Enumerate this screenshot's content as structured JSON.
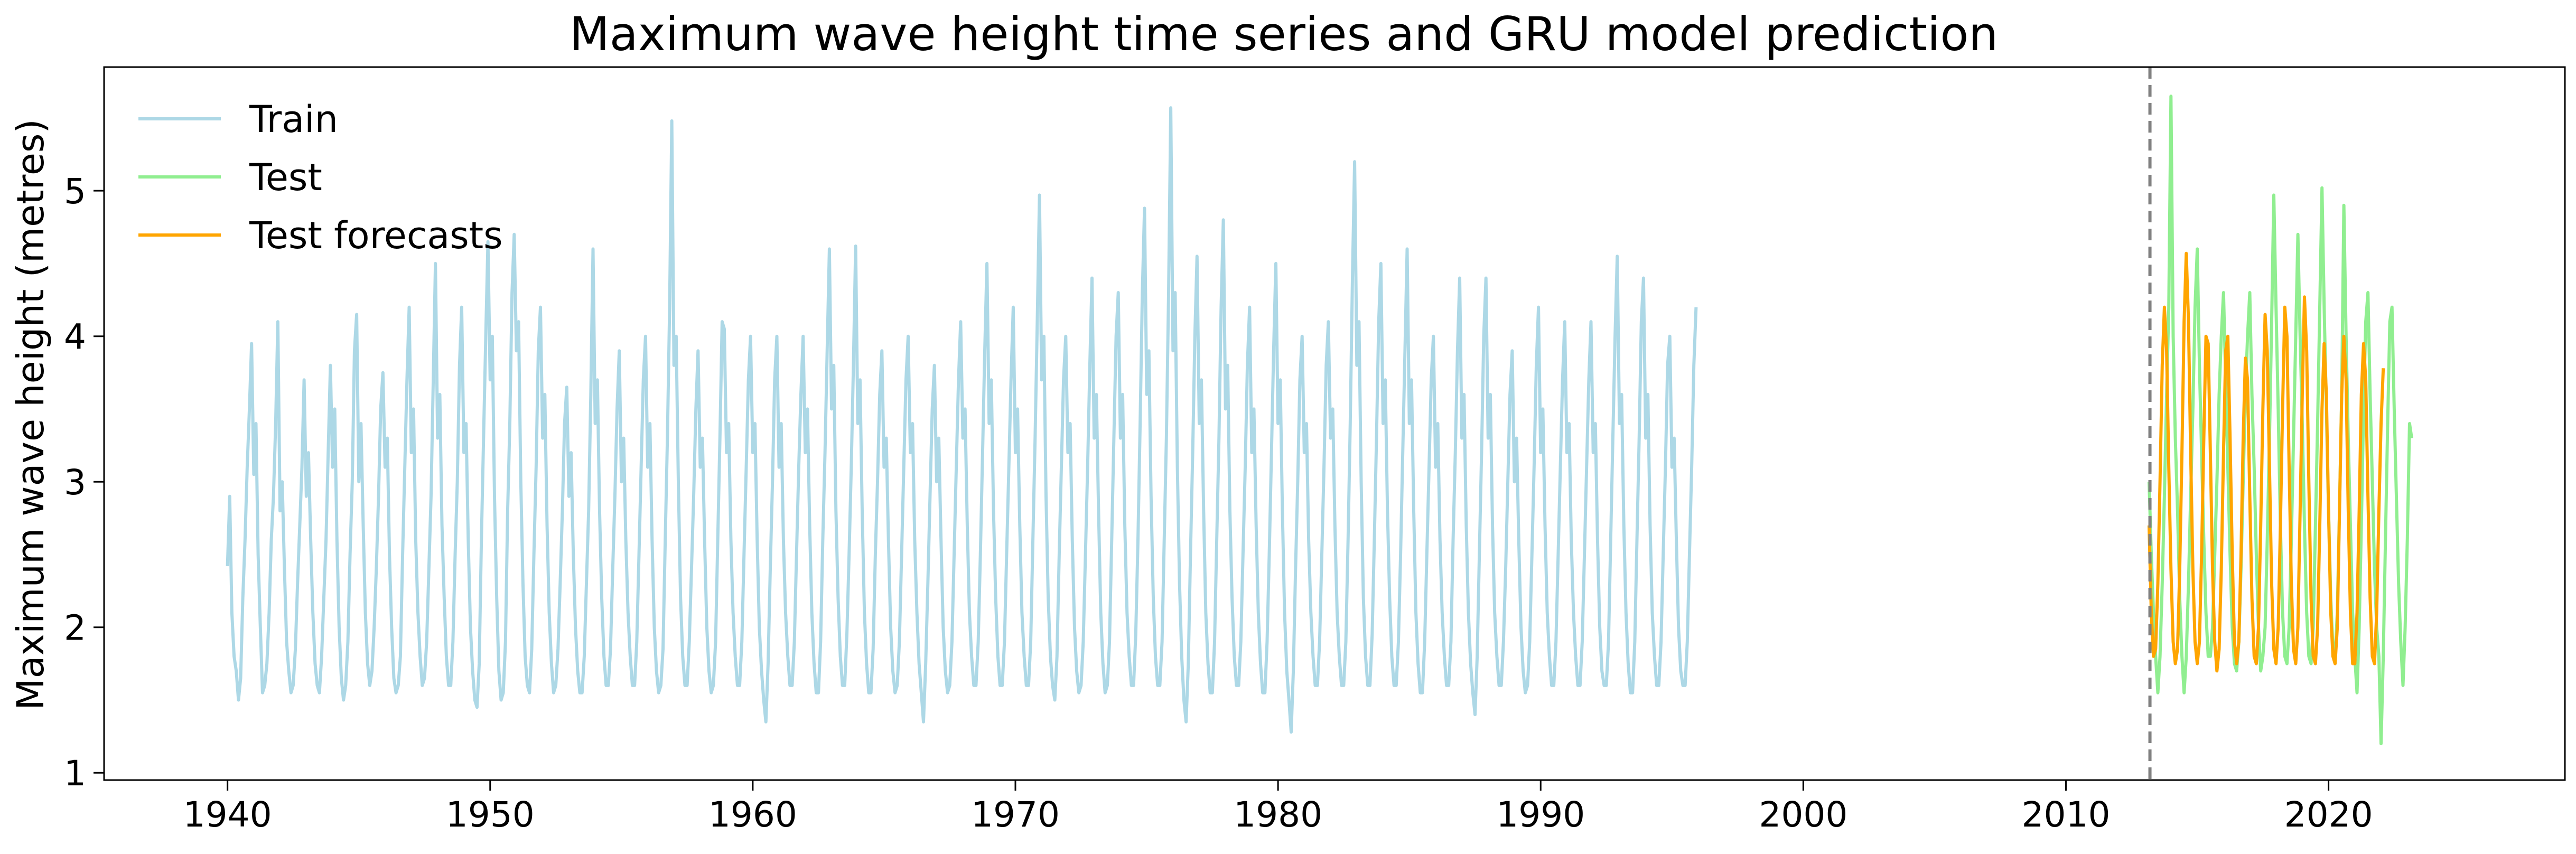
{
  "chart_data": {
    "type": "line",
    "title": "Maximum wave height time series and GRU model prediction",
    "xlabel": "",
    "ylabel": "Maximum wave height (metres)",
    "xlim": [
      1935.3,
      2029.0
    ],
    "ylim": [
      0.95,
      5.85
    ],
    "xticks": [
      1940,
      1950,
      1960,
      1970,
      1980,
      1990,
      2000,
      2010,
      2020
    ],
    "yticks": [
      1,
      2,
      3,
      4,
      5
    ],
    "grid": false,
    "legend_position": "top-left",
    "split_marker": {
      "x": 2013.2,
      "style": "dashed",
      "color": "#808080"
    },
    "series": [
      {
        "name": "Train",
        "color": "#add8e6",
        "x_start": 1940.0,
        "x_step": 0.0833333,
        "values": [
          2.42,
          2.9,
          2.1,
          1.8,
          1.7,
          1.5,
          1.65,
          2.2,
          2.6,
          3.1,
          3.5,
          3.95,
          3.05,
          3.4,
          2.5,
          2.0,
          1.55,
          1.6,
          1.75,
          2.1,
          2.6,
          2.9,
          3.4,
          4.1,
          2.8,
          3.0,
          2.4,
          1.9,
          1.7,
          1.55,
          1.6,
          1.85,
          2.3,
          2.7,
          3.1,
          3.7,
          2.9,
          3.2,
          2.6,
          2.1,
          1.75,
          1.6,
          1.55,
          1.8,
          2.2,
          2.6,
          3.2,
          3.8,
          3.1,
          3.5,
          2.6,
          2.0,
          1.65,
          1.5,
          1.6,
          1.9,
          2.5,
          3.0,
          3.9,
          4.15,
          3.0,
          3.4,
          2.7,
          2.1,
          1.75,
          1.6,
          1.7,
          2.0,
          2.4,
          2.9,
          3.5,
          3.75,
          3.1,
          3.3,
          2.5,
          2.0,
          1.65,
          1.55,
          1.6,
          1.8,
          2.5,
          3.1,
          3.7,
          4.2,
          3.2,
          3.5,
          2.6,
          2.1,
          1.8,
          1.6,
          1.65,
          1.9,
          2.4,
          2.9,
          3.7,
          4.5,
          3.3,
          3.6,
          2.7,
          2.2,
          1.8,
          1.6,
          1.6,
          1.9,
          2.5,
          3.0,
          3.8,
          4.2,
          3.2,
          3.4,
          2.6,
          2.0,
          1.7,
          1.5,
          1.45,
          1.75,
          2.6,
          3.3,
          4.0,
          4.65,
          3.7,
          4.0,
          2.9,
          2.2,
          1.7,
          1.5,
          1.55,
          1.9,
          2.8,
          3.4,
          4.3,
          4.7,
          3.9,
          4.1,
          3.0,
          2.3,
          1.8,
          1.6,
          1.55,
          1.85,
          2.5,
          3.1,
          3.9,
          4.2,
          3.3,
          3.6,
          2.7,
          2.1,
          1.75,
          1.55,
          1.6,
          1.85,
          2.3,
          2.8,
          3.4,
          3.65,
          2.9,
          3.2,
          2.5,
          2.0,
          1.7,
          1.55,
          1.55,
          1.8,
          2.3,
          2.8,
          3.6,
          4.6,
          3.4,
          3.7,
          2.8,
          2.2,
          1.8,
          1.6,
          1.6,
          1.85,
          2.4,
          2.9,
          3.5,
          3.9,
          3.0,
          3.3,
          2.6,
          2.1,
          1.8,
          1.6,
          1.6,
          1.9,
          2.5,
          3.1,
          3.7,
          4.0,
          3.1,
          3.4,
          2.6,
          2.0,
          1.7,
          1.55,
          1.6,
          1.85,
          2.6,
          3.3,
          4.2,
          5.48,
          3.8,
          4.0,
          3.0,
          2.2,
          1.8,
          1.6,
          1.6,
          1.9,
          2.4,
          2.9,
          3.5,
          3.9,
          3.1,
          3.3,
          2.6,
          2.0,
          1.7,
          1.55,
          1.6,
          1.9,
          2.6,
          3.3,
          4.1,
          4.05,
          3.2,
          3.4,
          2.6,
          2.1,
          1.8,
          1.6,
          1.6,
          1.9,
          2.5,
          3.1,
          3.7,
          4.0,
          3.2,
          3.4,
          2.6,
          2.0,
          1.7,
          1.5,
          1.35,
          1.75,
          2.4,
          3.0,
          3.7,
          4.0,
          3.1,
          3.4,
          2.6,
          2.1,
          1.8,
          1.6,
          1.6,
          1.9,
          2.5,
          3.1,
          3.6,
          4.0,
          3.2,
          3.5,
          2.7,
          2.1,
          1.75,
          1.55,
          1.55,
          1.9,
          2.6,
          3.2,
          3.9,
          4.6,
          3.5,
          3.8,
          2.8,
          2.2,
          1.8,
          1.6,
          1.6,
          1.95,
          2.5,
          3.1,
          3.8,
          4.62,
          3.4,
          3.7,
          2.8,
          2.1,
          1.75,
          1.55,
          1.55,
          1.85,
          2.5,
          3.0,
          3.6,
          3.9,
          3.1,
          3.3,
          2.6,
          2.0,
          1.7,
          1.55,
          1.6,
          1.9,
          2.5,
          3.1,
          3.7,
          4.0,
          3.2,
          3.4,
          2.6,
          2.1,
          1.75,
          1.55,
          1.35,
          1.75,
          2.3,
          2.9,
          3.5,
          3.8,
          3.0,
          3.3,
          2.6,
          2.0,
          1.7,
          1.55,
          1.6,
          1.9,
          2.5,
          3.1,
          3.7,
          4.1,
          3.3,
          3.5,
          2.7,
          2.1,
          1.8,
          1.6,
          1.6,
          1.9,
          2.5,
          3.2,
          3.9,
          4.5,
          3.4,
          3.7,
          2.8,
          2.2,
          1.8,
          1.6,
          1.6,
          1.9,
          2.5,
          3.1,
          3.7,
          4.2,
          3.2,
          3.5,
          2.7,
          2.1,
          1.8,
          1.6,
          1.6,
          1.9,
          2.6,
          3.3,
          4.1,
          4.97,
          3.7,
          4.0,
          2.9,
          2.2,
          1.8,
          1.6,
          1.5,
          1.8,
          2.5,
          3.1,
          3.7,
          4.0,
          3.2,
          3.4,
          2.6,
          2.0,
          1.7,
          1.55,
          1.6,
          1.9,
          2.5,
          3.1,
          3.8,
          4.4,
          3.3,
          3.6,
          2.8,
          2.1,
          1.75,
          1.55,
          1.6,
          1.9,
          2.6,
          3.3,
          4.0,
          4.3,
          3.3,
          3.6,
          2.7,
          2.1,
          1.8,
          1.6,
          1.6,
          1.95,
          2.6,
          3.4,
          4.3,
          4.88,
          3.6,
          3.9,
          2.9,
          2.2,
          1.8,
          1.6,
          1.6,
          1.9,
          2.6,
          3.3,
          4.3,
          5.57,
          3.9,
          4.3,
          3.1,
          2.3,
          1.8,
          1.5,
          1.35,
          1.75,
          2.5,
          3.2,
          4.0,
          4.55,
          3.4,
          3.7,
          2.8,
          2.1,
          1.75,
          1.55,
          1.55,
          1.9,
          2.6,
          3.3,
          4.2,
          4.8,
          3.5,
          3.8,
          2.8,
          2.2,
          1.8,
          1.6,
          1.6,
          1.9,
          2.5,
          3.1,
          3.8,
          4.2,
          3.2,
          3.5,
          2.7,
          2.1,
          1.75,
          1.55,
          1.55,
          1.9,
          2.5,
          3.2,
          3.9,
          4.5,
          3.4,
          3.7,
          2.8,
          2.1,
          1.7,
          1.5,
          1.28,
          1.7,
          2.4,
          3.0,
          3.7,
          4.0,
          3.2,
          3.4,
          2.6,
          2.1,
          1.8,
          1.6,
          1.6,
          1.9,
          2.5,
          3.1,
          3.8,
          4.1,
          3.3,
          3.5,
          2.7,
          2.1,
          1.8,
          1.6,
          1.6,
          1.9,
          2.6,
          3.4,
          4.4,
          5.2,
          3.8,
          4.1,
          3.0,
          2.2,
          1.8,
          1.6,
          1.6,
          1.95,
          2.6,
          3.3,
          4.1,
          4.5,
          3.4,
          3.7,
          2.8,
          2.2,
          1.8,
          1.6,
          1.6,
          1.9,
          2.5,
          3.2,
          3.9,
          4.6,
          3.4,
          3.7,
          2.8,
          2.1,
          1.75,
          1.55,
          1.55,
          1.9,
          2.5,
          3.1,
          3.7,
          4.0,
          3.1,
          3.4,
          2.6,
          2.1,
          1.8,
          1.6,
          1.6,
          1.9,
          2.6,
          3.2,
          3.9,
          4.4,
          3.3,
          3.6,
          2.7,
          2.1,
          1.75,
          1.55,
          1.4,
          1.8,
          2.5,
          3.2,
          4.0,
          4.4,
          3.3,
          3.6,
          2.7,
          2.1,
          1.8,
          1.6,
          1.6,
          1.9,
          2.4,
          3.0,
          3.6,
          3.9,
          3.0,
          3.3,
          2.6,
          2.0,
          1.7,
          1.55,
          1.6,
          1.9,
          2.5,
          3.1,
          3.8,
          4.2,
          3.2,
          3.5,
          2.7,
          2.1,
          1.8,
          1.6,
          1.6,
          1.9,
          2.5,
          3.1,
          3.7,
          4.1,
          3.2,
          3.4,
          2.6,
          2.1,
          1.8,
          1.6,
          1.6,
          1.9,
          2.5,
          3.1,
          3.7,
          4.1,
          3.2,
          3.4,
          2.6,
          2.0,
          1.7,
          1.6,
          1.6,
          1.9,
          2.6,
          3.3,
          4.0,
          4.55,
          3.4,
          3.6,
          2.7,
          2.1,
          1.75,
          1.55,
          1.55,
          1.9,
          2.6,
          3.3,
          4.1,
          4.4,
          3.3,
          3.6,
          2.7,
          2.1,
          1.8,
          1.6,
          1.6,
          1.9,
          2.5,
          3.1,
          3.8,
          4.0,
          3.1,
          3.3,
          2.6,
          2.0,
          1.7,
          1.6,
          1.6,
          1.9,
          2.5,
          3.1,
          3.8,
          4.2
        ]
      },
      {
        "name": "Test",
        "color": "#90ee90",
        "x_start": 2013.167,
        "x_step": 0.0833333,
        "values": [
          3.0,
          2.5,
          2.1,
          1.8,
          1.55,
          1.8,
          2.3,
          2.9,
          3.6,
          4.2,
          5.65,
          4.0,
          3.3,
          2.8,
          2.2,
          1.8,
          1.55,
          1.8,
          2.3,
          2.9,
          3.5,
          4.2,
          4.6,
          3.8,
          3.2,
          2.6,
          2.1,
          1.8,
          1.8,
          2.0,
          2.5,
          3.0,
          3.6,
          4.0,
          4.3,
          3.7,
          3.1,
          2.5,
          2.0,
          1.75,
          1.7,
          1.9,
          2.4,
          3.0,
          3.6,
          4.0,
          4.3,
          3.6,
          3.1,
          2.5,
          2.0,
          1.7,
          1.8,
          2.0,
          2.6,
          3.3,
          4.1,
          4.97,
          4.2,
          3.5,
          2.7,
          2.1,
          1.8,
          1.75,
          2.0,
          2.6,
          3.3,
          4.0,
          4.7,
          4.0,
          3.4,
          2.7,
          2.1,
          1.8,
          1.75,
          2.0,
          2.7,
          3.4,
          4.2,
          5.02,
          4.2,
          3.5,
          2.8,
          2.2,
          1.85,
          1.8,
          2.1,
          2.8,
          3.6,
          4.9,
          4.0,
          3.3,
          2.7,
          2.1,
          1.8,
          1.55,
          2.0,
          2.7,
          3.5,
          4.1,
          4.3,
          3.6,
          3.0,
          2.4,
          2.0,
          1.8,
          1.2,
          1.8,
          2.6,
          3.4,
          4.1,
          4.2,
          3.5,
          2.9,
          2.3,
          1.9,
          1.6,
          2.0,
          2.6,
          3.4,
          3.3
        ]
      },
      {
        "name": "Test forecasts",
        "color": "#ffa500",
        "x_start": 2013.167,
        "x_step": 0.0833333,
        "values": [
          2.7,
          2.1,
          1.8,
          1.85,
          2.3,
          3.0,
          3.8,
          4.2,
          3.9,
          3.1,
          2.4,
          1.9,
          1.75,
          1.85,
          2.4,
          3.2,
          4.1,
          4.57,
          4.1,
          3.2,
          2.4,
          1.9,
          1.75,
          1.9,
          2.5,
          3.3,
          4.0,
          3.95,
          3.2,
          2.4,
          1.9,
          1.7,
          1.85,
          2.4,
          3.2,
          3.9,
          4.0,
          3.3,
          2.5,
          1.9,
          1.75,
          1.9,
          2.5,
          3.3,
          3.85,
          3.7,
          2.9,
          2.2,
          1.8,
          1.75,
          2.0,
          2.7,
          3.5,
          4.15,
          3.9,
          3.1,
          2.3,
          1.85,
          1.75,
          2.0,
          2.7,
          3.5,
          4.2,
          4.0,
          3.1,
          2.3,
          1.85,
          1.75,
          2.0,
          2.8,
          3.6,
          4.27,
          3.9,
          3.0,
          2.2,
          1.8,
          1.75,
          2.0,
          2.7,
          3.5,
          3.95,
          3.6,
          2.8,
          2.1,
          1.8,
          1.75,
          2.0,
          2.8,
          3.6,
          4.0,
          3.7,
          2.8,
          2.1,
          1.75,
          1.75,
          2.1,
          2.8,
          3.6,
          3.95,
          3.7,
          2.9,
          2.2,
          1.8,
          1.75,
          2.1,
          2.8,
          3.4,
          3.78
        ]
      }
    ]
  }
}
